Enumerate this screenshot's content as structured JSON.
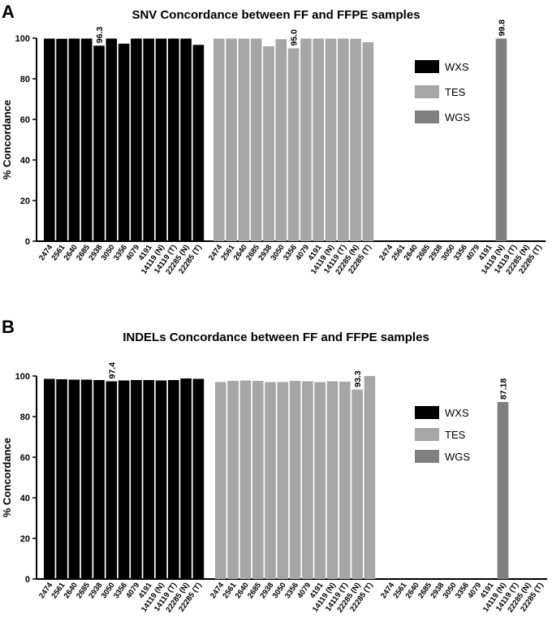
{
  "chart_data": [
    {
      "type": "bar",
      "panel": "A",
      "title": "SNV Concordance between FF and FFPE samples",
      "ylabel": "% Concordance",
      "xlabel": "",
      "ylim": [
        0,
        100
      ],
      "yticks": [
        0,
        20,
        40,
        60,
        80,
        100
      ],
      "legend_position": "top-right",
      "series": [
        {
          "name": "WXS",
          "color": "#000000",
          "categories": [
            "2474",
            "2561",
            "2640",
            "2685",
            "2938",
            "3050",
            "3356",
            "4079",
            "4191",
            "14119 (N)",
            "14119 (T)",
            "22285 (N)",
            "22285 (T)"
          ],
          "values": [
            99.8,
            99.7,
            99.8,
            99.8,
            96.3,
            99.8,
            97.3,
            99.8,
            99.8,
            99.8,
            99.8,
            99.8,
            96.7
          ],
          "labels": {
            "4": "96.3"
          }
        },
        {
          "name": "TES",
          "color": "#a6a6a6",
          "categories": [
            "2474",
            "2561",
            "2640",
            "2685",
            "2938",
            "3050",
            "3356",
            "4079",
            "4191",
            "14119 (N)",
            "14119 (T)",
            "22285 (N)",
            "22285 (T)"
          ],
          "values": [
            99.8,
            99.8,
            99.8,
            99.8,
            96.0,
            99.5,
            95.0,
            99.8,
            99.8,
            99.8,
            99.8,
            99.7,
            98.0
          ],
          "labels": {
            "6": "95.0"
          }
        },
        {
          "name": "WGS",
          "color": "#808080",
          "categories": [
            "2474",
            "2561",
            "2640",
            "2685",
            "2938",
            "3050",
            "3356",
            "4079",
            "4191",
            "14119 (N)",
            "14119 (T)",
            "22285 (N)",
            "22285 (T)"
          ],
          "values": [
            null,
            null,
            null,
            null,
            null,
            null,
            null,
            null,
            null,
            99.8,
            null,
            null,
            null
          ],
          "labels": {
            "9": "99.8"
          }
        }
      ]
    },
    {
      "type": "bar",
      "panel": "B",
      "title": "INDELs Concordance between FF and FFPE samples",
      "ylabel": "% Concordance",
      "xlabel": "",
      "ylim": [
        0,
        100
      ],
      "yticks": [
        0,
        20,
        40,
        60,
        80,
        100
      ],
      "legend_position": "top-right",
      "series": [
        {
          "name": "WXS",
          "color": "#000000",
          "categories": [
            "2474",
            "2561",
            "2640",
            "2685",
            "2938",
            "3050",
            "3356",
            "4079",
            "4191",
            "14119 (N)",
            "14119 (T)",
            "22285 (N)",
            "22285 (T)"
          ],
          "values": [
            98.6,
            98.4,
            98.2,
            98.2,
            98.0,
            97.4,
            97.8,
            98.0,
            98.0,
            97.8,
            98.0,
            98.8,
            98.6
          ],
          "labels": {
            "5": "97.4"
          }
        },
        {
          "name": "TES",
          "color": "#a6a6a6",
          "categories": [
            "2474",
            "2561",
            "2640",
            "2685",
            "2938",
            "3050",
            "3356",
            "4079",
            "4191",
            "14119 (N)",
            "14119 (T)",
            "22285 (N)",
            "22285 (T)"
          ],
          "values": [
            97.0,
            97.6,
            97.8,
            97.6,
            97.0,
            97.0,
            97.6,
            97.4,
            97.0,
            97.4,
            97.2,
            93.3,
            100.0
          ],
          "labels": {
            "11": "93.3"
          }
        },
        {
          "name": "WGS",
          "color": "#808080",
          "categories": [
            "2474",
            "2561",
            "2640",
            "2685",
            "2938",
            "3050",
            "3356",
            "4079",
            "4191",
            "14119 (N)",
            "14119 (T)",
            "22285 (N)",
            "22285 (T)"
          ],
          "values": [
            null,
            null,
            null,
            null,
            null,
            null,
            null,
            null,
            null,
            87.18,
            null,
            null,
            null
          ],
          "labels": {
            "9": "87.18"
          }
        }
      ]
    }
  ]
}
